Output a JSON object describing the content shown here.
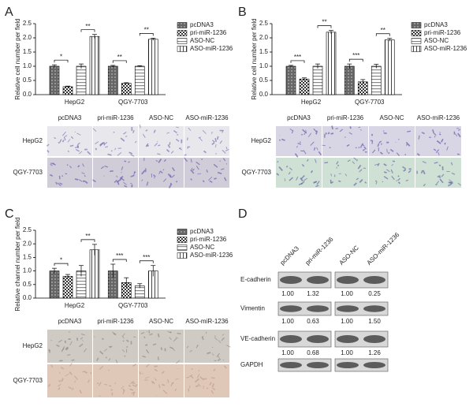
{
  "chart_data": [
    {
      "type": "bar",
      "y_label": "Relative cell number per field",
      "categories": [
        "HepG2",
        "QGY-7703"
      ],
      "series": [
        {
          "name": "pcDNA3",
          "color": "#666666",
          "hatch": "dots",
          "values": [
            1.0,
            1.0
          ],
          "errors": [
            0.05,
            0.03
          ]
        },
        {
          "name": "pri-miR-1236",
          "color": "#333333",
          "hatch": "check",
          "values": [
            0.28,
            0.4
          ],
          "errors": [
            0.02,
            0.02
          ]
        },
        {
          "name": "ASO-NC",
          "color": "#888888",
          "hatch": "hlines",
          "values": [
            1.0,
            1.0
          ],
          "errors": [
            0.08,
            0.02
          ]
        },
        {
          "name": "ASO-miR-1236",
          "color": "#444444",
          "hatch": "vlines",
          "values": [
            2.05,
            1.95
          ],
          "errors": [
            0.07,
            0.04
          ]
        }
      ],
      "annotations": [
        "*",
        "**",
        "**",
        "**"
      ],
      "ylim": [
        0,
        2.5
      ],
      "yticks": [
        {
          "value": 0,
          "label": "0.0"
        },
        0.5,
        {
          "value": 1,
          "label": "1.0"
        },
        1.5,
        {
          "value": 2,
          "label": "2.0"
        },
        2.5
      ]
    },
    {
      "type": "bar",
      "y_label": "Relative cell number per field",
      "categories": [
        "HepG2",
        "QGY-7703"
      ],
      "series": [
        {
          "name": "pcDNA3",
          "color": "#666666",
          "hatch": "dots",
          "values": [
            1.0,
            1.0
          ],
          "errors": [
            0.03,
            0.08
          ]
        },
        {
          "name": "pri-miR-1236",
          "color": "#333333",
          "hatch": "check",
          "values": [
            0.55,
            0.45
          ],
          "errors": [
            0.04,
            0.08
          ]
        },
        {
          "name": "ASO-NC",
          "color": "#888888",
          "hatch": "hlines",
          "values": [
            1.0,
            1.0
          ],
          "errors": [
            0.08,
            0.07
          ]
        },
        {
          "name": "ASO-miR-1236",
          "color": "#444444",
          "hatch": "vlines",
          "values": [
            2.2,
            1.93
          ],
          "errors": [
            0.06,
            0.05
          ]
        }
      ],
      "annotations": [
        "***",
        "**",
        "***",
        "**"
      ],
      "ylim": [
        0,
        2.5
      ],
      "yticks": [
        {
          "value": 0,
          "label": "0.0"
        },
        0.5,
        {
          "value": 1,
          "label": "1.0"
        },
        1.5,
        {
          "value": 2,
          "label": "2.0"
        },
        2.5
      ]
    },
    {
      "type": "bar",
      "y_label": "Relative channel number per field",
      "categories": [
        "HepG2",
        "QGY-7703"
      ],
      "series": [
        {
          "name": "pcDNA3",
          "color": "#666666",
          "hatch": "dots",
          "values": [
            1.0,
            1.0
          ],
          "errors": [
            0.1,
            0.25
          ]
        },
        {
          "name": "pri-miR-1236",
          "color": "#333333",
          "hatch": "check",
          "values": [
            0.8,
            0.57
          ],
          "errors": [
            0.07,
            0.18
          ]
        },
        {
          "name": "ASO-NC",
          "color": "#888888",
          "hatch": "hlines",
          "values": [
            1.0,
            0.45
          ],
          "errors": [
            0.2,
            0.08
          ]
        },
        {
          "name": "ASO-miR-1236",
          "color": "#444444",
          "hatch": "vlines",
          "values": [
            1.78,
            1.0
          ],
          "errors": [
            0.2,
            0.2
          ]
        }
      ],
      "annotations": [
        "*",
        "**",
        "***",
        "***"
      ],
      "ylim": [
        0,
        2.5
      ],
      "yticks": [
        {
          "value": 0,
          "label": "0.0"
        },
        0.5,
        {
          "value": 1,
          "label": "1.0"
        },
        1.5,
        {
          "value": 2,
          "label": "2.0"
        },
        2.5
      ]
    }
  ],
  "panels": [
    {
      "letter": "A",
      "columns": [
        "pcDNA3",
        "pri-miR-1236",
        "ASO-NC",
        "ASO-miR-1236"
      ],
      "rows": [
        "HepG2",
        "QGY-7703"
      ]
    },
    {
      "letter": "B",
      "columns": [
        "pcDNA3",
        "pri-miR-1236",
        "ASO-NC",
        "ASO-miR-1236"
      ],
      "rows": [
        "HepG2",
        "QGY-7703"
      ]
    },
    {
      "letter": "C",
      "columns": [
        "pcDNA3",
        "pri-miR-1236",
        "ASO-NC",
        "ASO-miR-1236"
      ],
      "rows": [
        "HepG2",
        "QGY-7703"
      ]
    }
  ],
  "western_blot": {
    "letter": "D",
    "lanes": [
      "pcDNA3",
      "pri-miR-1236",
      "ASO-NC",
      "ASO-miR-1236"
    ],
    "rows": [
      {
        "label": "E-cadherin",
        "values": [
          "1.00",
          "1.32",
          "1.00",
          "0.25"
        ]
      },
      {
        "label": "Vimentin",
        "values": [
          "1.00",
          "0.63",
          "1.00",
          "1.50"
        ]
      },
      {
        "label": "VE-cadherin",
        "values": [
          "1.00",
          "0.68",
          "1.00",
          "1.26"
        ]
      },
      {
        "label": "GAPDH"
      }
    ]
  }
}
